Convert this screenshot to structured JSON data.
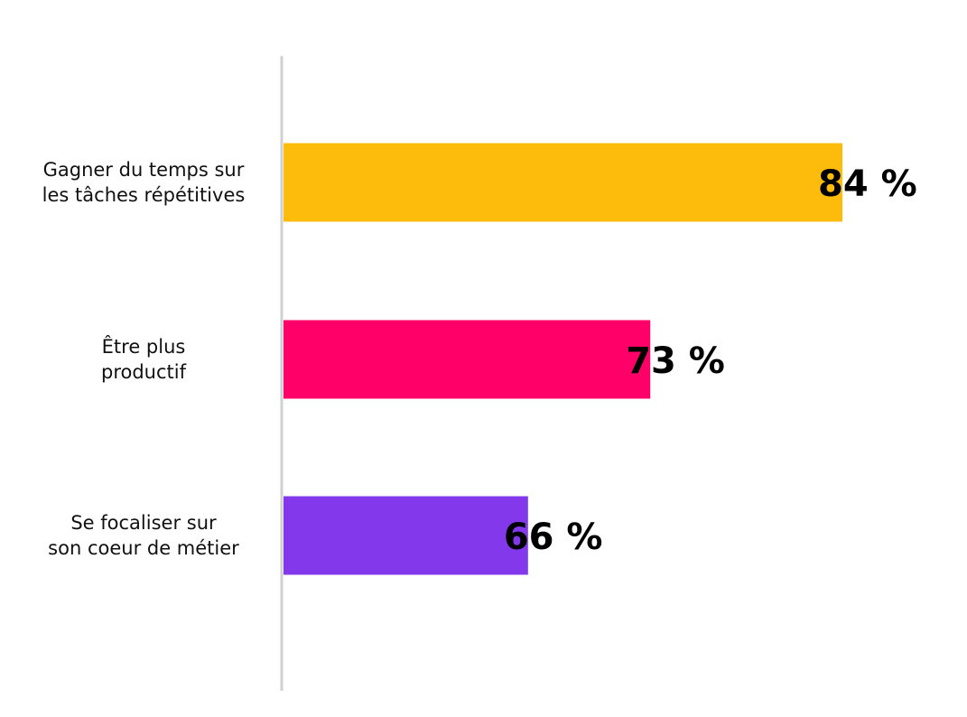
{
  "chart_data": {
    "type": "bar",
    "orientation": "horizontal",
    "categories": [
      [
        "Gagner du temps sur",
        "les tâches répétitives"
      ],
      [
        "Être plus",
        "productif"
      ],
      [
        "Se focaliser sur",
        "son coeur de métier"
      ]
    ],
    "values": [
      84,
      73,
      66
    ],
    "value_labels": [
      "84 %",
      "73 %",
      "66 %"
    ],
    "colors": [
      "#FDBC0C",
      "#FF0069",
      "#8438EB"
    ],
    "xlim": [
      52,
      86
    ],
    "axis_color": "#D0D0D0",
    "grid": false,
    "legend": "none"
  }
}
